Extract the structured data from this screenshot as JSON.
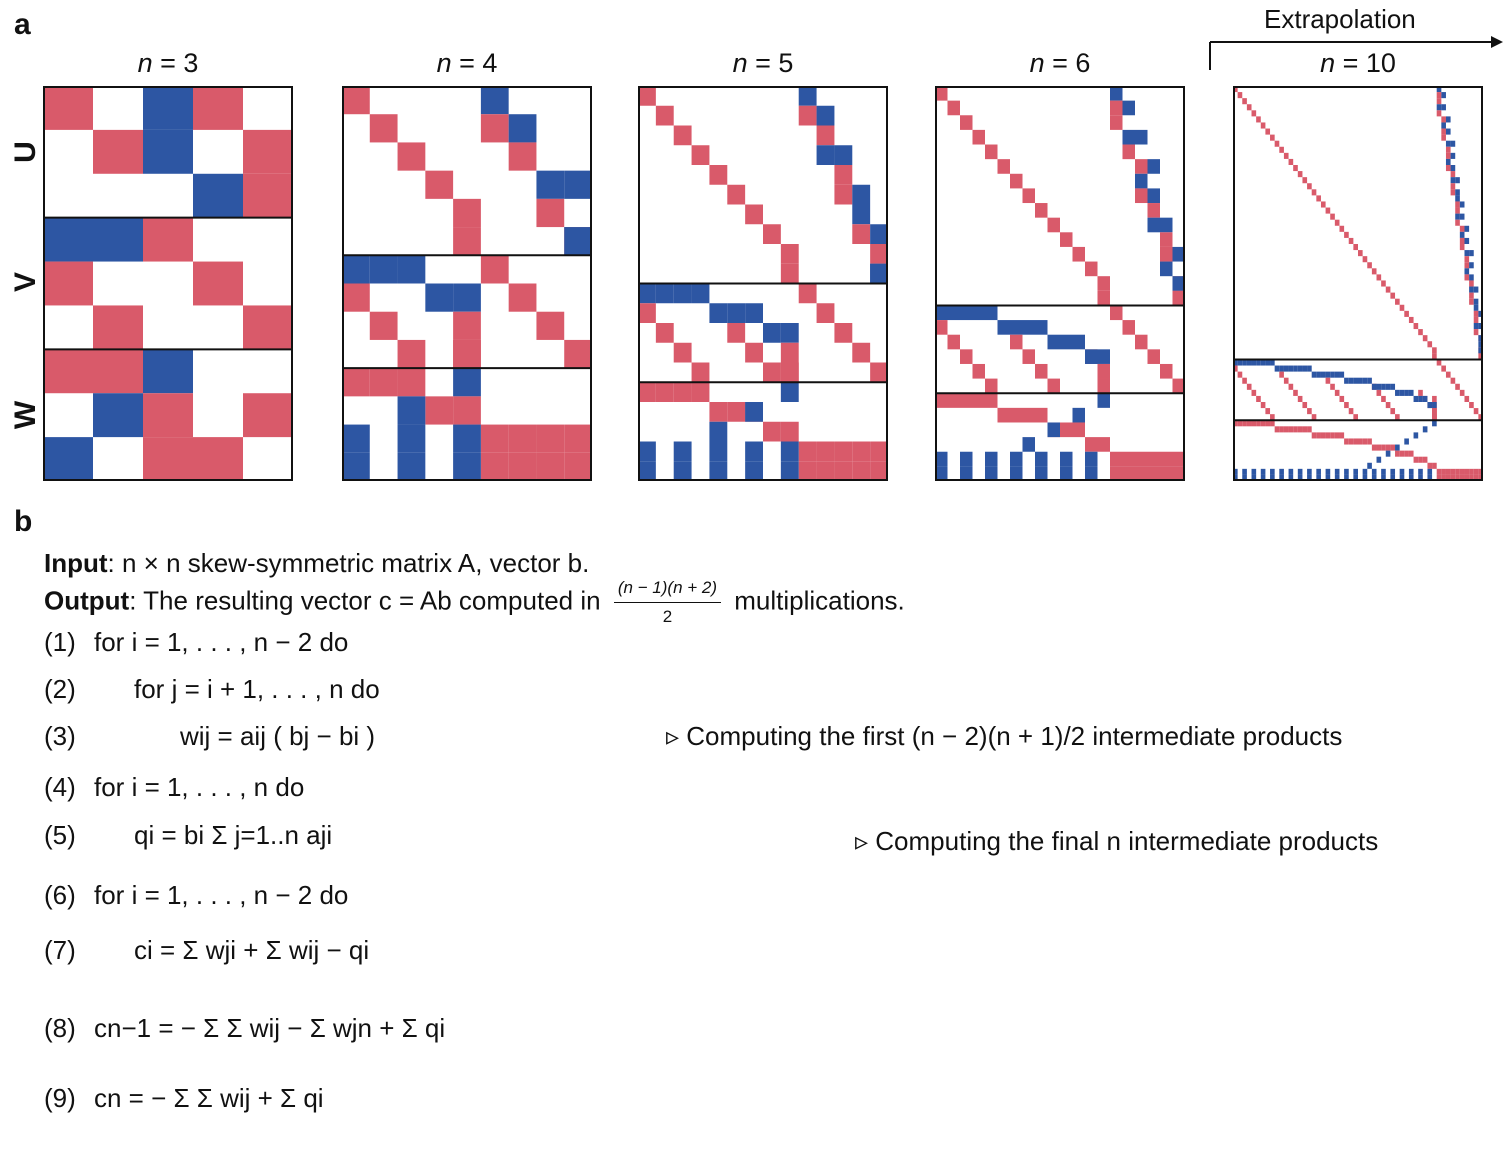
{
  "panel_a_label": "a",
  "panel_b_label": "b",
  "extrapolation": "Extrapolation",
  "row_labels": [
    "U",
    "V",
    "W"
  ],
  "columns": [
    {
      "title_var": "n",
      "title_eq": " = 3"
    },
    {
      "title_var": "n",
      "title_eq": " = 4"
    },
    {
      "title_var": "n",
      "title_eq": " = 5"
    },
    {
      "title_var": "n",
      "title_eq": " = 6"
    },
    {
      "title_var": "n",
      "title_eq": " = 10"
    }
  ],
  "colors": {
    "positive": "#d95a6a",
    "negative": "#2d56a3",
    "border": "#111111"
  },
  "algorithm": {
    "input_label": "Input",
    "input_text": ": n × n skew-symmetric matrix A, vector b.",
    "output_label": "Output",
    "output_text_1": ": The resulting vector c = Ab computed in",
    "frac_num": "(n − 1)(n + 2)",
    "frac_den": "2",
    "output_text_2": "multiplications.",
    "lines": [
      {
        "num": "(1)",
        "text": "for i = 1, . . . , n − 2 do"
      },
      {
        "num": "(2)",
        "text": "for j = i + 1, . . . , n do"
      },
      {
        "num": "(3)",
        "text": "wij = aij ( bj − bi )"
      },
      {
        "num": "(4)",
        "text": "for i = 1, . . . , n do"
      },
      {
        "num": "(5)",
        "text": "qi = bi Σ j=1..n aji"
      },
      {
        "num": "(6)",
        "text": "for i = 1, . . . , n − 2 do"
      },
      {
        "num": "(7)",
        "text": "ci = Σ wji + Σ wij − qi"
      },
      {
        "num": "(8)",
        "text": "cn−1 = − Σ Σ wij − Σ wjn + Σ qi"
      },
      {
        "num": "(9)",
        "text": "cn = − Σ Σ wij + Σ qi"
      }
    ],
    "comment_1": "▹ Computing the first (n − 2)(n + 1)/2 intermediate products",
    "comment_2": "▹ Computing the final n intermediate products"
  }
}
